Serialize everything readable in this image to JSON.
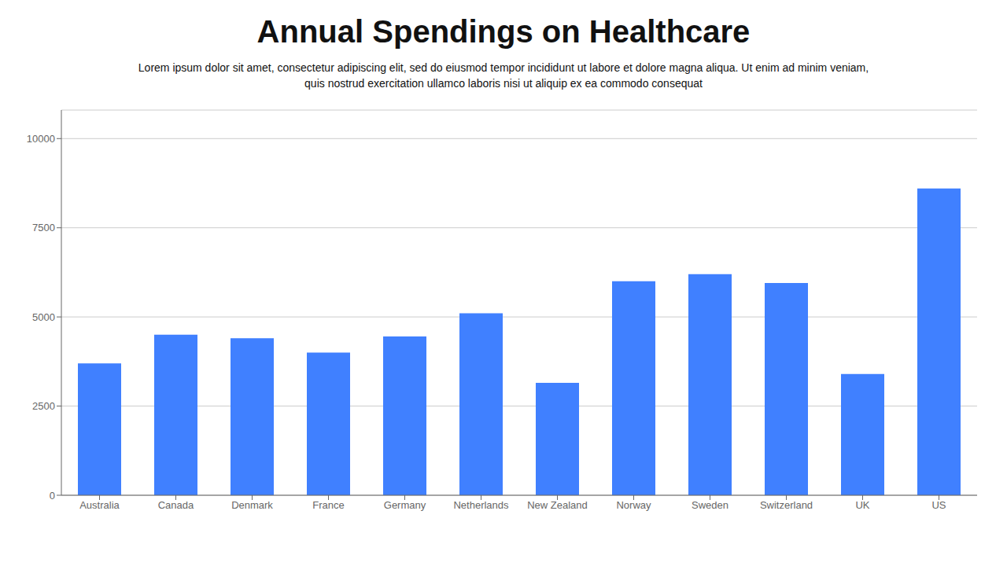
{
  "chart_data": {
    "type": "bar",
    "title": "Annual Spendings on Healthcare",
    "subtitle": [
      "Lorem ipsum dolor sit amet, consectetur adipiscing elit, sed do eiusmod tempor incididunt ut labore et dolore magna aliqua. Ut enim ad minim veniam,",
      "quis nostrud exercitation ullamco laboris nisi ut aliquip ex ea commodo consequat"
    ],
    "categories": [
      "Australia",
      "Canada",
      "Denmark",
      "France",
      "Germany",
      "Netherlands",
      "New Zealand",
      "Norway",
      "Sweden",
      "Switzerland",
      "UK",
      "US"
    ],
    "values": [
      3700,
      4500,
      4400,
      4000,
      4450,
      5100,
      3150,
      6000,
      6200,
      5950,
      3400,
      8600
    ],
    "color": "#4080ff",
    "ylim": [
      0,
      10800
    ],
    "yticks": [
      0,
      2500,
      5000,
      7500,
      10000
    ],
    "grid": true
  }
}
